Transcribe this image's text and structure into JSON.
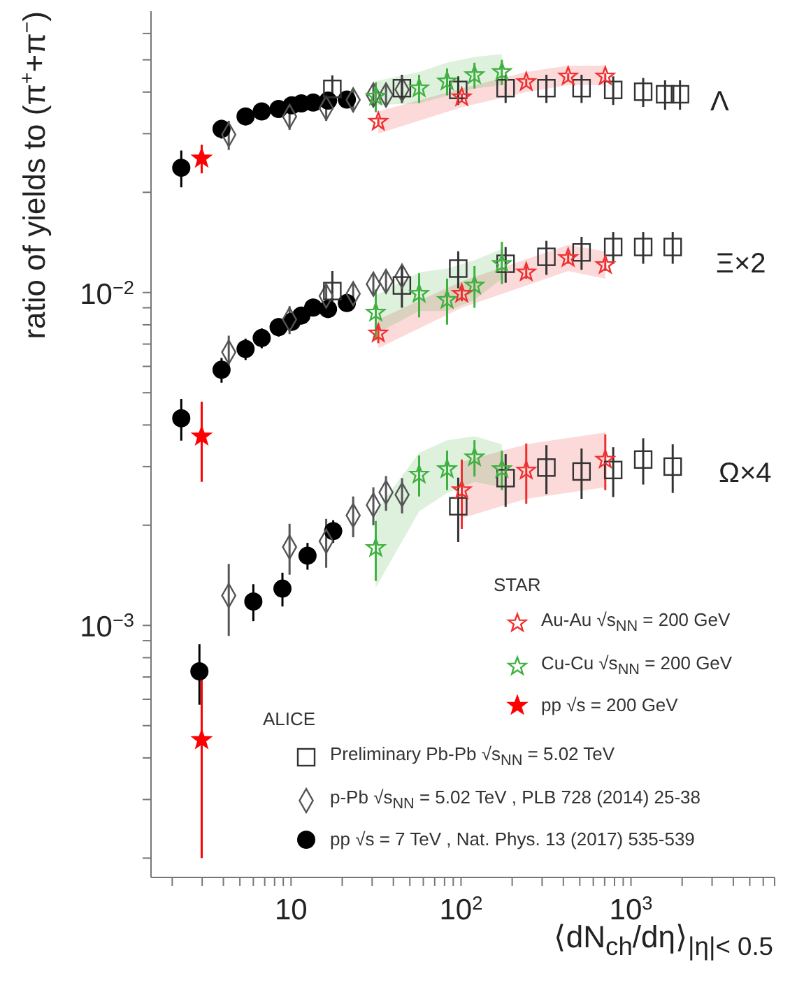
{
  "chart_data": {
    "type": "scatter",
    "xlabel": "⟨dN$_{ch}$/dη⟩$_{|η|< 0.5}$",
    "ylabel": "ratio of yields to (π$^{+}$+π$^{−}$)",
    "log": "xy",
    "legend": "bottom right",
    "xlim": [
      1.5,
      7000
    ],
    "ylim": [
      0.000175,
      0.07
    ],
    "xticks": [
      {
        "value": 2,
        "label": null
      },
      {
        "value": 3,
        "label": null
      },
      {
        "value": 4,
        "label": null
      },
      {
        "value": 5,
        "label": null
      },
      {
        "value": 6,
        "label": null
      },
      {
        "value": 7,
        "label": null
      },
      {
        "value": 8,
        "label": null
      },
      {
        "value": 9,
        "label": null
      },
      10,
      {
        "value": 20,
        "label": null
      },
      {
        "value": 30,
        "label": null
      },
      {
        "value": 40,
        "label": null
      },
      {
        "value": 50,
        "label": null
      },
      {
        "value": 60,
        "label": null
      },
      {
        "value": 70,
        "label": null
      },
      {
        "value": 80,
        "label": null
      },
      {
        "value": 90,
        "label": null
      },
      {
        "value": 100,
        "label": "10$^{2}$"
      },
      {
        "value": 200,
        "label": null
      },
      {
        "value": 300,
        "label": null
      },
      {
        "value": 400,
        "label": null
      },
      {
        "value": 500,
        "label": null
      },
      {
        "value": 600,
        "label": null
      },
      {
        "value": 700,
        "label": null
      },
      {
        "value": 800,
        "label": null
      },
      {
        "value": 900,
        "label": null
      },
      {
        "value": 1000,
        "label": "10$^{3}$"
      },
      {
        "value": 2000,
        "label": null
      },
      {
        "value": 3000,
        "label": null
      },
      {
        "value": 4000,
        "label": null
      },
      {
        "value": 5000,
        "label": null
      },
      {
        "value": 6000,
        "label": null
      },
      {
        "value": 7000,
        "label": null
      }
    ],
    "yticks": [
      {
        "value": 0.0002,
        "label": null
      },
      {
        "value": 0.0003,
        "label": null
      },
      {
        "value": 0.0004,
        "label": null
      },
      {
        "value": 0.0005,
        "label": null
      },
      {
        "value": 0.0006,
        "label": null
      },
      {
        "value": 0.0007,
        "label": null
      },
      {
        "value": 0.0008,
        "label": null
      },
      {
        "value": 0.0009,
        "label": null
      },
      {
        "value": 0.001,
        "label": "10$^{−3}$"
      },
      {
        "value": 0.002,
        "label": null
      },
      {
        "value": 0.003,
        "label": null
      },
      {
        "value": 0.004,
        "label": null
      },
      {
        "value": 0.005,
        "label": null
      },
      {
        "value": 0.006,
        "label": null
      },
      {
        "value": 0.007,
        "label": null
      },
      {
        "value": 0.008,
        "label": null
      },
      {
        "value": 0.009,
        "label": null
      },
      {
        "value": 0.01,
        "label": "10$^{−2}$"
      },
      {
        "value": 0.02,
        "label": null
      },
      {
        "value": 0.03,
        "label": null
      },
      {
        "value": 0.04,
        "label": null
      },
      {
        "value": 0.05,
        "label": null
      },
      {
        "value": 0.06,
        "label": null
      }
    ],
    "annotations": [
      "STAR",
      "ALICE",
      "Λ",
      "Ξ×2",
      "Ω×4"
    ],
    "series": [
      {
        "name": "Au-Au √s$_{NN}$ = 200 GeV",
        "marker": "star",
        "color": "#f03030",
        "x": [
          32.6,
          101,
          242,
          427,
          706,
          32.6,
          101,
          242,
          427,
          706,
          101,
          242,
          706
        ],
        "values": [
          0.0326,
          0.0386,
          0.0429,
          0.0446,
          0.0446,
          0.00754,
          0.00992,
          0.0115,
          0.0127,
          0.0121,
          0.00255,
          0.00292,
          0.00315
        ],
        "errors": [
          0.001,
          0.001,
          0.001,
          0.001,
          0.001,
          0.0005,
          0.0005,
          0.0005,
          0.0005,
          0.0005,
          0.0006,
          0.0006,
          0.0006
        ],
        "lower": [
          0.03,
          0.036,
          0.04,
          0.042,
          0.042,
          0.0068,
          0.009,
          0.0105,
          0.0116,
          0.011,
          0.0021,
          0.0024,
          0.0026
        ],
        "upper": [
          0.035,
          0.041,
          0.046,
          0.048,
          0.048,
          0.0083,
          0.0108,
          0.0126,
          0.0139,
          0.0133,
          0.0031,
          0.0035,
          0.0038
        ]
      },
      {
        "name": "Cu-Cu √s$_{NN}$ = 200 GeV",
        "marker": "star",
        "color": "#40b040",
        "x": [
          31.5,
          56.7,
          82.8,
          120,
          174,
          31.5,
          56.7,
          82.8,
          120,
          174,
          31.5,
          56.7,
          82.8,
          120,
          174
        ],
        "values": [
          0.0388,
          0.0411,
          0.0431,
          0.045,
          0.046,
          0.00871,
          0.00992,
          0.00951,
          0.0105,
          0.0122,
          0.00171,
          0.00284,
          0.00295,
          0.0032,
          0.00295
        ],
        "errors": [
          0.004,
          0.004,
          0.004,
          0.004,
          0.004,
          0.0015,
          0.0015,
          0.0015,
          0.0015,
          [
            0.0106,
            0.0142
          ],
          0.00035,
          0.0004,
          0.0004,
          0.0004,
          0.0004
        ],
        "lower": [
          0.0366,
          0.037,
          0.039,
          0.041,
          0.042,
          0.0075,
          0.0088,
          0.0088,
          0.0095,
          0.011,
          0.0013,
          0.0022,
          0.0025,
          0.0027,
          0.0026
        ],
        "upper": [
          0.0431,
          0.046,
          0.049,
          0.051,
          0.052,
          0.0098,
          0.0115,
          0.0118,
          0.0125,
          0.0135,
          0.0022,
          0.0033,
          0.0036,
          0.0037,
          0.0035
        ]
      },
      {
        "name": "pp √s = 200 GeV",
        "marker": "star",
        "color": "#ff0000",
        "x": [
          2.98,
          2.98,
          2.98
        ],
        "values": [
          0.0253,
          0.0037,
          0.000453
        ],
        "errors": [
          0.0025,
          [
            0.0027,
            0.0047
          ],
          [
            0.0002,
            0.00071
          ]
        ]
      },
      {
        "name": "Preliminary Pb-Pb √s$_{NN}$ = 5.02 TeV",
        "marker": "square",
        "color": "#333333",
        "x": [
          17.5,
          44.9,
          96.3,
          183,
          318,
          512,
          786,
          1180,
          1587,
          1943,
          17.5,
          44.9,
          96.3,
          183,
          318,
          512,
          786,
          1180,
          1760,
          96.3,
          183,
          318,
          512,
          786,
          1180,
          1760
        ],
        "values": [
          0.0409,
          0.0411,
          0.0406,
          0.0411,
          0.0411,
          0.0411,
          0.0406,
          0.0401,
          0.0394,
          0.0394,
          0.0101,
          0.0105,
          0.0118,
          0.0122,
          0.0128,
          0.0132,
          0.0137,
          0.0137,
          0.0137,
          0.00228,
          0.00277,
          0.00298,
          0.0029,
          0.00293,
          0.00315,
          0.003
        ],
        "errors": [
          0.004,
          0.004,
          0.004,
          0.004,
          0.004,
          0.004,
          0.004,
          0.004,
          0.004,
          0.004,
          0.0015,
          0.0015,
          0.0015,
          0.0015,
          0.0015,
          0.0015,
          0.0015,
          0.0015,
          0.0015,
          0.0005,
          0.0005,
          0.0005,
          0.0005,
          0.0005,
          0.0005,
          0.0005
        ]
      },
      {
        "name": "p-Pb √s$_{NN}$ = 5.02 TeV , PLB 728 (2014) 25-38",
        "marker": "diamond",
        "color": "#555555",
        "x": [
          4.3,
          9.8,
          16.1,
          23.2,
          30.5,
          36.2,
          45,
          4.3,
          9.8,
          16.1,
          23.2,
          30.5,
          36.2,
          45,
          4.3,
          9.8,
          16.1,
          23.2,
          30.5,
          36.2,
          45
        ],
        "values": [
          0.0298,
          0.0338,
          0.0358,
          0.0379,
          0.0392,
          0.0392,
          0.0407,
          0.00662,
          0.0083,
          0.00976,
          0.00992,
          0.0106,
          0.0108,
          0.0112,
          0.00123,
          0.00172,
          0.00179,
          0.00214,
          0.0023,
          0.00251,
          0.00247
        ],
        "errors": [
          0.003,
          0.003,
          0.003,
          0.003,
          0.003,
          0.003,
          0.003,
          0.0008,
          0.0008,
          0.0008,
          0.0008,
          0.0008,
          0.0008,
          0.0008,
          0.0003,
          0.0003,
          0.0003,
          0.0003,
          0.0003,
          0.0003,
          0.0003
        ]
      },
      {
        "name": "pp √s = 7 TeV , Nat. Phys. 13 (2017) 535-539",
        "marker": "circle",
        "color": "#000000",
        "x": [
          2.26,
          3.9,
          5.4,
          6.72,
          8.45,
          10.1,
          11.5,
          13.5,
          16.5,
          21.3,
          2.26,
          3.9,
          5.4,
          6.72,
          8.45,
          10.1,
          11.5,
          13.5,
          16.5,
          21.3,
          2.89,
          6.0,
          8.9,
          12.5,
          17.7
        ],
        "values": [
          0.0237,
          0.031,
          0.0338,
          0.035,
          0.0356,
          0.0365,
          0.037,
          0.0372,
          0.0377,
          0.038,
          0.00419,
          0.00586,
          0.00677,
          0.0073,
          0.00787,
          0.00817,
          0.00853,
          0.00901,
          0.00892,
          0.0093,
          0.000728,
          0.00118,
          0.00129,
          0.00162,
          0.00192
        ],
        "errors": [
          0.003,
          0.002,
          0.002,
          0.002,
          0.002,
          0.002,
          0.002,
          0.002,
          0.002,
          0.002,
          0.0006,
          0.0005,
          0.0005,
          0.0005,
          0.0005,
          0.0005,
          0.0005,
          0.0005,
          0.0005,
          0.0005,
          0.00015,
          0.00015,
          0.00015,
          0.00015,
          0.00015
        ]
      }
    ]
  }
}
